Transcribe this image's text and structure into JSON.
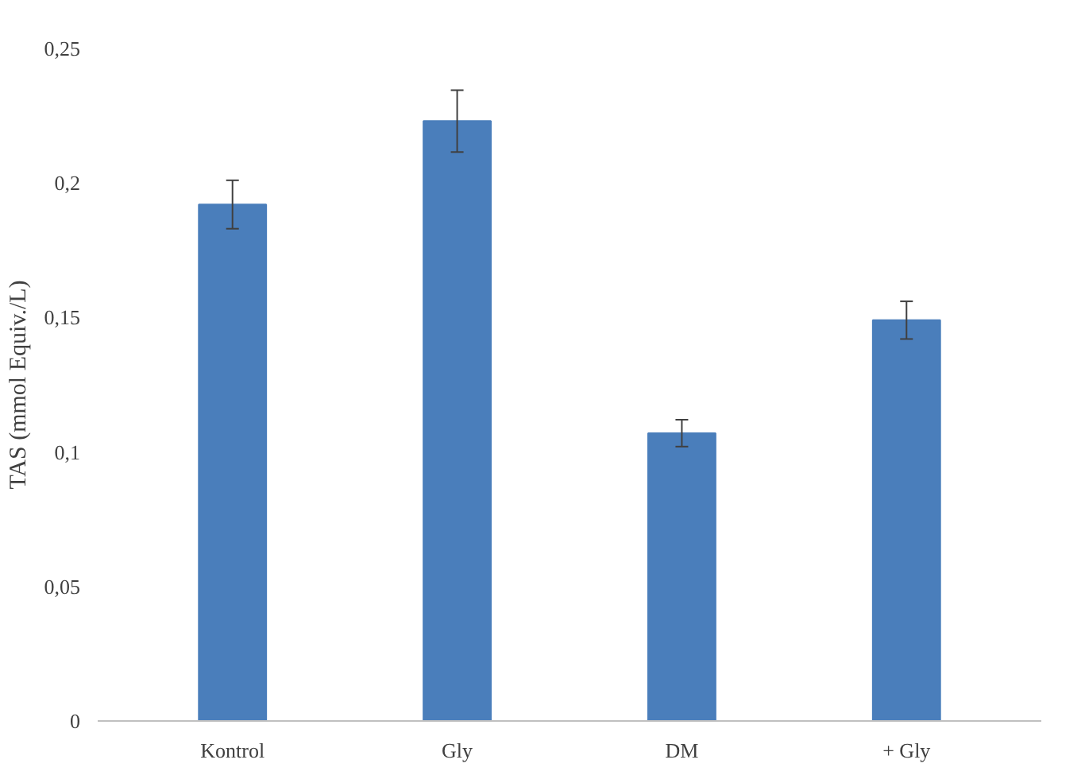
{
  "chart_data": {
    "type": "bar",
    "ylabel": "TAS (mmol Equiv./L)",
    "categories": [
      "Kontrol",
      "Gly",
      "DM",
      "+ Gly"
    ],
    "values": [
      0.192,
      0.223,
      0.107,
      0.149
    ],
    "errors": [
      0.009,
      0.0115,
      0.005,
      0.007
    ],
    "color": "#4a7ebb",
    "ylim": [
      0,
      0.25
    ],
    "yticks": [
      {
        "value": 0,
        "label": "0"
      },
      {
        "value": 0.05,
        "label": "0,05"
      },
      {
        "value": 0.1,
        "label": "0,1"
      },
      {
        "value": 0.15,
        "label": "0,15"
      },
      {
        "value": 0.2,
        "label": "0,2"
      },
      {
        "value": 0.25,
        "label": "0,25"
      }
    ],
    "grid": false
  }
}
